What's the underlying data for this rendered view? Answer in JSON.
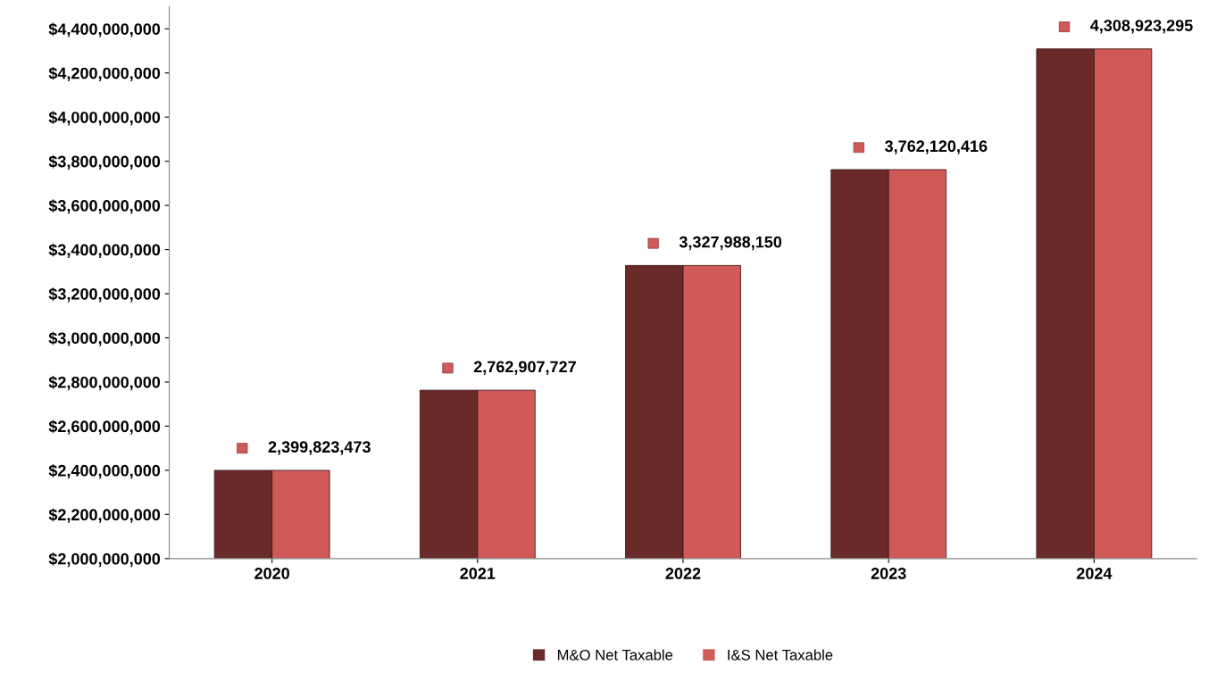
{
  "chart_data": {
    "type": "bar",
    "categories": [
      "2020",
      "2021",
      "2022",
      "2023",
      "2024"
    ],
    "series": [
      {
        "name": "M&O Net Taxable",
        "color": "#6b2a2a",
        "values": [
          2399823473,
          2762907727,
          3327988150,
          3762120416,
          4308923295
        ]
      },
      {
        "name": "I&S Net Taxable",
        "color": "#d05a57",
        "values": [
          2399823473,
          2762907727,
          3327988150,
          3762120416,
          4308923295
        ],
        "value_labels": [
          "2,399,823,473",
          "2,762,907,727",
          "3,327,988,150",
          "3,762,120,416",
          "4,308,923,295"
        ]
      }
    ],
    "ylim": [
      2000000000,
      4500000000
    ],
    "yticks": [
      {
        "value": 2000000000,
        "label": "$2,000,000,000"
      },
      {
        "value": 2200000000,
        "label": "$2,200,000,000"
      },
      {
        "value": 2400000000,
        "label": "$2,400,000,000"
      },
      {
        "value": 2600000000,
        "label": "$2,600,000,000"
      },
      {
        "value": 2800000000,
        "label": "$2,800,000,000"
      },
      {
        "value": 3000000000,
        "label": "$3,000,000,000"
      },
      {
        "value": 3200000000,
        "label": "$3,200,000,000"
      },
      {
        "value": 3400000000,
        "label": "$3,400,000,000"
      },
      {
        "value": 3600000000,
        "label": "$3,600,000,000"
      },
      {
        "value": 3800000000,
        "label": "$3,800,000,000"
      },
      {
        "value": 4000000000,
        "label": "$4,000,000,000"
      },
      {
        "value": 4200000000,
        "label": "$4,200,000,000"
      },
      {
        "value": 4400000000,
        "label": "$4,400,000,000"
      }
    ],
    "grid": false,
    "legend": "bottom"
  }
}
